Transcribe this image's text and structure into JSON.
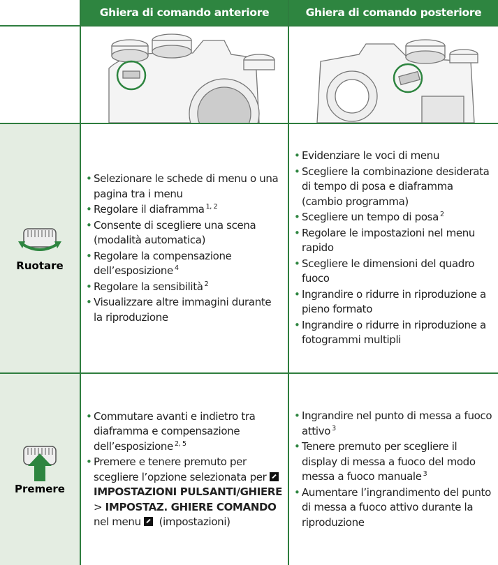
{
  "header": {
    "columns": [
      "Ghiera di comando anteriore",
      "Ghiera di comando posteriore"
    ]
  },
  "rows": [
    {
      "label": "Ruotare",
      "front": [
        [
          {
            "text": "Selezionare le schede di menu o una pagina tra i menu",
            "style": "plain"
          }
        ],
        [
          {
            "text": "Regolare il diaframma",
            "style": "plain"
          },
          {
            "text": "1, 2",
            "style": "sup"
          }
        ],
        [
          {
            "text": "Consente di scegliere una scena (modalità automatica)",
            "style": "plain"
          }
        ],
        [
          {
            "text": "Regolare la compensazione dell’esposizione",
            "style": "plain"
          },
          {
            "text": "4",
            "style": "sup"
          }
        ],
        [
          {
            "text": "Regolare la sensibilità",
            "style": "plain"
          },
          {
            "text": "2",
            "style": "sup"
          }
        ],
        [
          {
            "text": "Visualizzare altre immagini durante la riproduzione",
            "style": "plain"
          }
        ]
      ],
      "rear": [
        [
          {
            "text": "Evidenziare le voci di menu",
            "style": "plain"
          }
        ],
        [
          {
            "text": "Scegliere la combinazione desiderata di tempo di posa e diaframma (cambio programma)",
            "style": "plain"
          }
        ],
        [
          {
            "text": "Scegliere un tempo di posa",
            "style": "plain"
          },
          {
            "text": "2",
            "style": "sup"
          }
        ],
        [
          {
            "text": "Regolare le impostazioni nel menu rapido",
            "style": "plain"
          }
        ],
        [
          {
            "text": "Scegliere le dimensioni del quadro fuoco",
            "style": "plain"
          }
        ],
        [
          {
            "text": "Ingrandire o ridurre in riproduzione a pieno formato",
            "style": "plain"
          }
        ],
        [
          {
            "text": "Ingrandire o ridurre in riproduzione a fotogrammi multipli",
            "style": "plain"
          }
        ]
      ]
    },
    {
      "label": "Premere",
      "front": [
        [
          {
            "text": "Commutare avanti e indietro tra diaframma e compensazione dell’esposizione",
            "style": "plain"
          },
          {
            "text": "2, 5",
            "style": "sup"
          }
        ],
        [
          {
            "text": "Premere e tenere premuto per scegliere l’opzione selezionata per ",
            "style": "plain"
          },
          {
            "style": "setup-icon"
          },
          {
            "text": "IMPOSTAZIONI PULSANTI/GHIERE",
            "style": "bold"
          },
          {
            "text": " > ",
            "style": "plain"
          },
          {
            "text": "IMPOSTAZ. GHIERE COMANDO",
            "style": "bold"
          },
          {
            "text": " nel menu ",
            "style": "plain"
          },
          {
            "style": "setup-icon"
          },
          {
            "text": " (impostazioni)",
            "style": "plain"
          }
        ]
      ],
      "rear": [
        [
          {
            "text": "Ingrandire nel punto di messa a fuoco attivo",
            "style": "plain"
          },
          {
            "text": "3",
            "style": "sup"
          }
        ],
        [
          {
            "text": "Tenere premuto per scegliere il display di messa a fuoco del modo messa a fuoco manuale",
            "style": "plain"
          },
          {
            "text": "3",
            "style": "sup"
          }
        ],
        [
          {
            "text": "Aumentare l’ingrandimento del punto di messa a fuoco attivo durante la riproduzione",
            "style": "plain"
          }
        ]
      ]
    }
  ]
}
